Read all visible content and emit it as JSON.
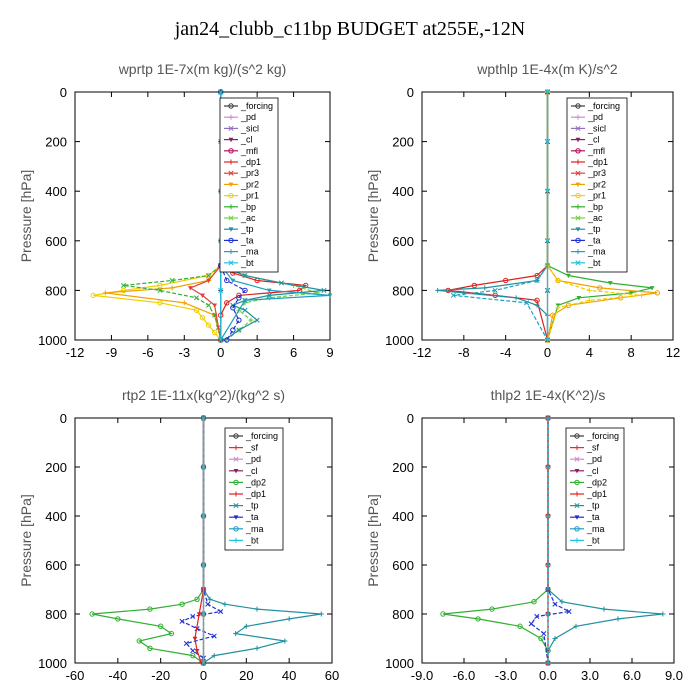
{
  "title": "jan24_clubb_c11bp  BUDGET at255E,-12N",
  "colors": {
    "_forcing": "#3a3a3a",
    "_pd": "#d08ad0",
    "_sicl": "#9070c0",
    "_cl": "#8a2060",
    "_mfl": "#b01060",
    "_dp1": "#e02020",
    "_pr3": "#e04040",
    "_pr2": "#f0a000",
    "_pr1": "#f0d000",
    "_bp": "#30b030",
    "_ac": "#70d040",
    "_tp": "#2090a0",
    "_ta": "#2030d0",
    "_ma": "#20a0c0",
    "_bt": "#20c0e0",
    "_sf": "#e03020",
    "_dp2": "#30b030"
  },
  "chart_data": [
    {
      "type": "line",
      "title": "wprtp  1E-7x(m kg)/(s^2 kg)",
      "ylabel": "Pressure [hPa]",
      "xlim": [
        -12,
        9
      ],
      "ylim": [
        1000,
        0
      ],
      "xticks": [
        "-12",
        "-9",
        "-6",
        "-3",
        "0",
        "3",
        "6",
        "9"
      ],
      "yticks": [
        "0",
        "200",
        "400",
        "600",
        "800",
        "1000"
      ],
      "legend": [
        "_forcing",
        "_pd",
        "_sicl",
        "_cl",
        "_mfl",
        "_dp1",
        "_pr3",
        "_pr2",
        "_pr1",
        "_bp",
        "_ac",
        "_tp",
        "_ta",
        "_ma",
        "_bt"
      ],
      "legend_placement": "top-right",
      "series": [
        {
          "name": "_pr1",
          "p": [
            0,
            700,
            740,
            780,
            800,
            820,
            850,
            880,
            910,
            940,
            970,
            1000
          ],
          "x": [
            0,
            0,
            -1,
            -5,
            -8,
            -10.5,
            -5,
            -2,
            -1.5,
            -1,
            -0.5,
            0
          ]
        },
        {
          "name": "_pr2",
          "p": [
            0,
            700,
            760,
            790,
            810,
            850,
            900,
            1000
          ],
          "x": [
            0,
            0,
            -1,
            -4,
            -9.5,
            -3,
            -0.5,
            0
          ]
        },
        {
          "name": "_bp",
          "p": [
            0,
            700,
            740,
            760,
            780,
            800,
            830,
            860,
            900,
            950,
            1000
          ],
          "x": [
            0,
            0,
            -1,
            -4,
            -8,
            -5,
            -2,
            -1,
            -0.5,
            -0.2,
            0
          ]
        },
        {
          "name": "_pr3",
          "p": [
            0,
            700,
            760,
            790,
            820,
            860,
            1000
          ],
          "x": [
            0,
            0,
            -1,
            -2.5,
            -1.5,
            -0.5,
            0
          ]
        },
        {
          "name": "_dp1",
          "p": [
            0,
            700,
            730,
            760,
            780,
            800,
            820,
            850,
            900,
            1000
          ],
          "x": [
            0,
            0,
            1,
            3,
            7,
            6.5,
            1.5,
            0.5,
            0,
            0
          ]
        },
        {
          "name": "_ac",
          "p": [
            0,
            700,
            740,
            780,
            810,
            830,
            850,
            880,
            920,
            960,
            1000
          ],
          "x": [
            0,
            0,
            2,
            6,
            8,
            4,
            2,
            1.5,
            2.5,
            1.5,
            0.5
          ]
        },
        {
          "name": "_tp",
          "p": [
            0,
            700,
            740,
            770,
            800,
            820,
            840,
            860,
            880,
            920,
            960,
            1000
          ],
          "x": [
            0,
            0,
            2,
            5,
            8.5,
            4,
            2,
            1,
            2,
            3,
            1.5,
            0.3
          ]
        },
        {
          "name": "_ma",
          "p": [
            0,
            700,
            760,
            800,
            820,
            840,
            1000
          ],
          "x": [
            0,
            0,
            1,
            4,
            9,
            2,
            0
          ]
        },
        {
          "name": "_ta",
          "p": [
            0,
            700,
            760,
            800,
            830,
            870,
            920,
            960,
            1000
          ],
          "x": [
            0,
            0,
            0.5,
            2,
            1.5,
            1,
            1.5,
            1,
            0.5
          ]
        },
        {
          "name": "_forcing",
          "p": [
            0,
            200,
            400,
            600,
            800,
            1000
          ],
          "x": [
            0,
            0,
            0,
            0,
            0,
            0
          ]
        },
        {
          "name": "_bt",
          "p": [
            0,
            200,
            400,
            600,
            800,
            1000
          ],
          "x": [
            0,
            0,
            0,
            0,
            0,
            0
          ]
        }
      ]
    },
    {
      "type": "line",
      "title": "wpthlp  1E-4x(m K)/s^2",
      "ylabel": "Pressure [hPa]",
      "xlim": [
        -12,
        12
      ],
      "ylim": [
        1000,
        0
      ],
      "xticks": [
        "-12",
        "-8",
        "-4",
        "0",
        "4",
        "8",
        "12"
      ],
      "yticks": [
        "0",
        "200",
        "400",
        "600",
        "800",
        "1000"
      ],
      "legend": [
        "_forcing",
        "_pd",
        "_sicl",
        "_cl",
        "_mfl",
        "_dp1",
        "_pr3",
        "_pr2",
        "_pr1",
        "_bp",
        "_ac",
        "_tp",
        "_ta",
        "_ma",
        "_bt"
      ],
      "legend_placement": "top-right",
      "series": [
        {
          "name": "_dp1",
          "p": [
            0,
            700,
            740,
            760,
            780,
            800,
            820,
            840,
            1000
          ],
          "x": [
            0,
            0,
            -1,
            -4,
            -7,
            -9.5,
            -5,
            -1,
            0
          ]
        },
        {
          "name": "_tp",
          "p": [
            0,
            700,
            760,
            790,
            800,
            810,
            830,
            860,
            900,
            1000
          ],
          "x": [
            0,
            0,
            -1,
            -6,
            -10.5,
            -8,
            -3,
            -1,
            0,
            0
          ]
        },
        {
          "name": "_ma",
          "p": [
            0,
            700,
            760,
            800,
            820,
            850,
            1000
          ],
          "x": [
            0,
            0,
            -1,
            -5,
            -9,
            -2,
            0
          ]
        },
        {
          "name": "_bp",
          "p": [
            0,
            700,
            740,
            770,
            790,
            810,
            830,
            860,
            1000
          ],
          "x": [
            0,
            0,
            2,
            6,
            10,
            8,
            3,
            1,
            0
          ]
        },
        {
          "name": "_pr2",
          "p": [
            0,
            700,
            760,
            790,
            810,
            830,
            860,
            900,
            1000
          ],
          "x": [
            0,
            0,
            1,
            5,
            10.5,
            7,
            2,
            0.5,
            0
          ]
        },
        {
          "name": "_pr1",
          "p": [
            0,
            700,
            760,
            800,
            820,
            840,
            870,
            1000
          ],
          "x": [
            0,
            0,
            1,
            4,
            9,
            4,
            1,
            0
          ]
        },
        {
          "name": "_forcing",
          "p": [
            0,
            200,
            400,
            600,
            800,
            1000
          ],
          "x": [
            0,
            0,
            0,
            0,
            0,
            0
          ]
        },
        {
          "name": "_bt",
          "p": [
            0,
            200,
            400,
            600,
            800,
            1000
          ],
          "x": [
            0,
            0,
            0,
            0,
            0,
            0
          ]
        }
      ]
    },
    {
      "type": "line",
      "title": "rtp2  1E-11x(kg^2)/(kg^2 s)",
      "ylabel": "Pressure [hPa]",
      "xlim": [
        -60,
        60
      ],
      "ylim": [
        1000,
        0
      ],
      "xticks": [
        "-60",
        "-40",
        "-20",
        "0",
        "20",
        "40",
        "60"
      ],
      "yticks": [
        "0",
        "200",
        "400",
        "600",
        "800",
        "1000"
      ],
      "legend": [
        "_forcing",
        "_sf",
        "_pd",
        "_cl",
        "_dp2",
        "_dp1",
        "_tp",
        "_ta",
        "_ma",
        "_bt"
      ],
      "legend_placement": "top-right",
      "series": [
        {
          "name": "_dp2",
          "p": [
            0,
            700,
            740,
            760,
            780,
            800,
            820,
            850,
            880,
            910,
            940,
            970,
            1000
          ],
          "x": [
            0,
            0,
            -3,
            -10,
            -25,
            -52,
            -40,
            -20,
            -15,
            -30,
            -25,
            -5,
            0
          ]
        },
        {
          "name": "_tp",
          "p": [
            0,
            700,
            740,
            760,
            780,
            800,
            820,
            850,
            880,
            910,
            940,
            970,
            1000
          ],
          "x": [
            0,
            0,
            3,
            10,
            25,
            55,
            40,
            20,
            15,
            38,
            25,
            5,
            0
          ]
        },
        {
          "name": "_ta",
          "p": [
            0,
            700,
            760,
            790,
            810,
            830,
            860,
            890,
            920,
            950,
            980,
            1000
          ],
          "x": [
            0,
            0,
            2,
            8,
            -5,
            -10,
            -3,
            5,
            -8,
            -5,
            0,
            0
          ]
        },
        {
          "name": "_dp1",
          "p": [
            0,
            700,
            800,
            900,
            950,
            1000
          ],
          "x": [
            0,
            0,
            -2,
            -4,
            -3,
            -1
          ]
        },
        {
          "name": "_forcing",
          "p": [
            0,
            200,
            400,
            600,
            800,
            1000
          ],
          "x": [
            0,
            0,
            0,
            0,
            0,
            0
          ]
        },
        {
          "name": "_sf",
          "p": [
            0,
            200,
            400,
            600,
            800,
            1000
          ],
          "x": [
            0,
            0,
            0,
            0,
            0,
            0
          ]
        },
        {
          "name": "_bt",
          "p": [
            0,
            200,
            400,
            600,
            800,
            1000
          ],
          "x": [
            0,
            0,
            0,
            0,
            0,
            0
          ]
        }
      ]
    },
    {
      "type": "line",
      "title": "thlp2  1E-4x(K^2)/s",
      "ylabel": "Pressure [hPa]",
      "xlim": [
        -9,
        9
      ],
      "ylim": [
        1000,
        0
      ],
      "xticks": [
        "-9.0",
        "-6.0",
        "-3.0",
        "0.0",
        "3.0",
        "6.0",
        "9.0"
      ],
      "yticks": [
        "0",
        "200",
        "400",
        "600",
        "800",
        "1000"
      ],
      "legend": [
        "_forcing",
        "_sf",
        "_pd",
        "_cl",
        "_dp2",
        "_dp1",
        "_tp",
        "_ta",
        "_ma",
        "_bt"
      ],
      "legend_placement": "top-right",
      "series": [
        {
          "name": "_dp2",
          "p": [
            0,
            700,
            750,
            780,
            800,
            820,
            850,
            900,
            950,
            1000
          ],
          "x": [
            0,
            0,
            -1,
            -4,
            -7.5,
            -5,
            -2,
            -0.5,
            0,
            0
          ]
        },
        {
          "name": "_tp",
          "p": [
            0,
            700,
            750,
            780,
            800,
            820,
            850,
            900,
            950,
            1000
          ],
          "x": [
            0,
            0,
            1,
            4,
            8.2,
            5,
            2,
            0.5,
            0,
            0
          ]
        },
        {
          "name": "_ta",
          "p": [
            0,
            700,
            760,
            790,
            810,
            840,
            880,
            1000
          ],
          "x": [
            0,
            0,
            0.5,
            1.5,
            -0.8,
            -1.2,
            -0.3,
            0
          ]
        },
        {
          "name": "_forcing",
          "p": [
            0,
            200,
            400,
            600,
            800,
            1000
          ],
          "x": [
            0,
            0,
            0,
            0,
            0,
            0
          ]
        },
        {
          "name": "_sf",
          "p": [
            0,
            200,
            400,
            600,
            800,
            1000
          ],
          "x": [
            0,
            0,
            0,
            0,
            0,
            0
          ]
        },
        {
          "name": "_bt",
          "p": [
            0,
            200,
            400,
            600,
            800,
            1000
          ],
          "x": [
            0,
            0,
            0,
            0,
            0,
            0
          ]
        }
      ]
    }
  ]
}
